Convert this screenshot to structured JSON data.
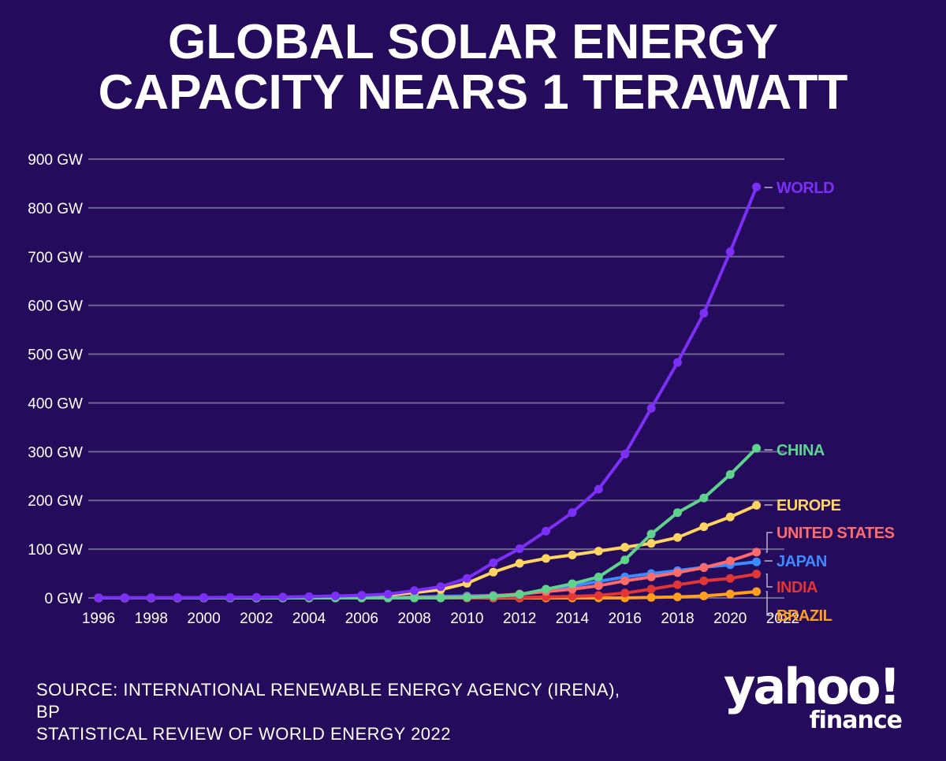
{
  "header": {
    "title_line1": "GLOBAL SOLAR ENERGY",
    "title_line2": "CAPACITY NEARS 1 TERAWATT"
  },
  "footer": {
    "source_line1": "SOURCE: INTERNATIONAL RENEWABLE ENERGY AGENCY (IRENA), BP",
    "source_line2": "STATISTICAL REVIEW OF WORLD ENERGY 2022",
    "logo_word": "yahoo!",
    "logo_sub": "finance"
  },
  "colors": {
    "background": "#250b5c",
    "grid": "#6e6691",
    "axis_text": "#ffffff",
    "connector": "#b9b3cf"
  },
  "chart_data": {
    "type": "line",
    "x": [
      1996,
      1997,
      1998,
      1999,
      2000,
      2001,
      2002,
      2003,
      2004,
      2005,
      2006,
      2007,
      2008,
      2009,
      2010,
      2011,
      2012,
      2013,
      2014,
      2015,
      2016,
      2017,
      2018,
      2019,
      2020,
      2021
    ],
    "xticks": [
      "1996",
      "1998",
      "2000",
      "2002",
      "2004",
      "2006",
      "2008",
      "2010",
      "2012",
      "2014",
      "2016",
      "2018",
      "2020",
      "2022"
    ],
    "yticks": [
      "0 GW",
      "100 GW",
      "200 GW",
      "300 GW",
      "400 GW",
      "500 GW",
      "600 GW",
      "700 GW",
      "800 GW",
      "900 GW"
    ],
    "ylim": [
      0,
      900
    ],
    "xlim": [
      1996,
      2022
    ],
    "grid": true,
    "series": [
      {
        "name": "WORLD",
        "color": "#7b2ff7",
        "values": [
          0.3,
          0.4,
          0.5,
          0.6,
          0.8,
          1.1,
          1.4,
          1.8,
          2.7,
          4,
          5.5,
          7.6,
          15,
          23,
          40,
          72,
          101,
          137,
          175,
          223,
          295,
          389,
          483,
          584,
          710,
          843
        ]
      },
      {
        "name": "CHINA",
        "color": "#5fd38d",
        "values": [
          0,
          0,
          0,
          0,
          0,
          0,
          0,
          0,
          0,
          0,
          0,
          0,
          0,
          0,
          1,
          3,
          7,
          18,
          29,
          43,
          78,
          131,
          175,
          205,
          253,
          307
        ]
      },
      {
        "name": "EUROPE",
        "color": "#ffd460",
        "values": [
          0.1,
          0.1,
          0.1,
          0.2,
          0.2,
          0.3,
          0.4,
          0.6,
          1,
          2,
          3.5,
          5.5,
          11,
          17,
          30,
          53,
          71,
          81,
          88,
          96,
          104,
          112,
          124,
          146,
          166,
          190
        ]
      },
      {
        "name": "UNITED STATES",
        "color": "#ff6b6b",
        "values": [
          0,
          0,
          0,
          0,
          0,
          0,
          0,
          0,
          0,
          0,
          0,
          0,
          1,
          1,
          2,
          4,
          8,
          13,
          18,
          25,
          35,
          43,
          52,
          62,
          76,
          94
        ]
      },
      {
        "name": "JAPAN",
        "color": "#3d8bff",
        "values": [
          0,
          0,
          0,
          0,
          0,
          0,
          0,
          0,
          0,
          0,
          0,
          0,
          2,
          3,
          4,
          5,
          7,
          14,
          24,
          34,
          43,
          50,
          56,
          63,
          68,
          74
        ]
      },
      {
        "name": "INDIA",
        "color": "#e23535",
        "values": [
          0,
          0,
          0,
          0,
          0,
          0,
          0,
          0,
          0,
          0,
          0,
          0,
          0,
          0,
          0,
          1,
          1,
          2,
          3,
          5,
          10,
          18,
          27,
          35,
          40,
          49
        ]
      },
      {
        "name": "BRAZIL",
        "color": "#ff9f1c",
        "values": [
          0,
          0,
          0,
          0,
          0,
          0,
          0,
          0,
          0,
          0,
          0,
          0,
          0,
          0,
          0,
          0,
          0,
          0,
          0,
          0,
          0,
          1,
          2,
          4,
          8,
          13
        ]
      }
    ]
  }
}
